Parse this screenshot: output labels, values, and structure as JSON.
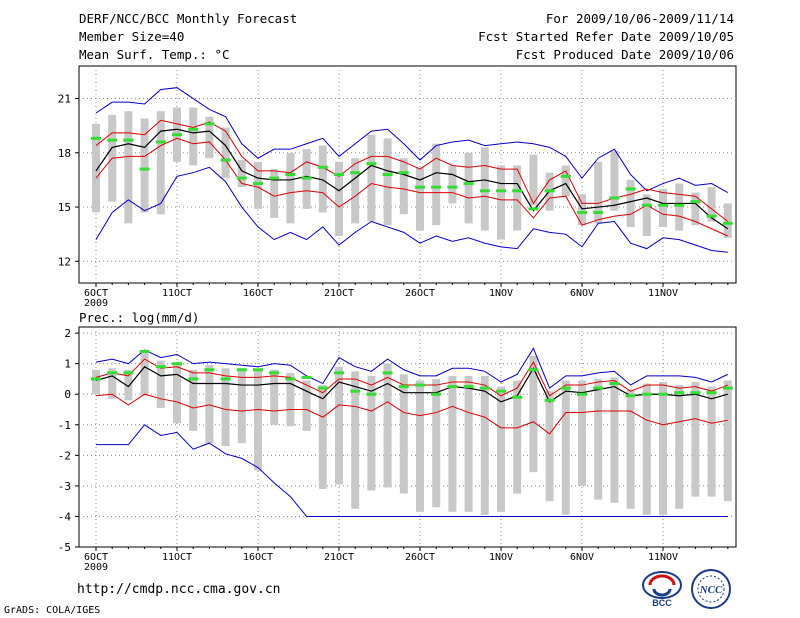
{
  "header": {
    "title": "DERF/NCC/BCC Monthly Forecast",
    "member_size": "Member Size=40",
    "variable": "Mean Surf. Temp.: °C",
    "period": "For 2009/10/06-2009/11/14",
    "fcst_started": "Fcst Started Refer Date 2009/10/05",
    "fcst_produced": "Fcst Produced Date 2009/10/06"
  },
  "footer": {
    "url": "http://cmdp.ncc.cma.gov.cn",
    "grads": "GrADS: COLA/IGES",
    "logo_left_text": "BCC",
    "logo_right_text": "NCC"
  },
  "colors": {
    "envelope": "#0000cc",
    "spread": "#dd0000",
    "mean": "#000000",
    "observed": "#33dd33",
    "box": "#c8c8c8"
  },
  "chart_data": [
    {
      "type": "box-ensemble",
      "title": "Mean Surf. Temp.: °C",
      "x_tick_labels": [
        "6OCT",
        "11OCT",
        "16OCT",
        "21OCT",
        "26OCT",
        "1NOV",
        "6NOV",
        "11NOV"
      ],
      "x_tick_days": [
        1,
        6,
        11,
        16,
        21,
        26,
        31,
        36
      ],
      "year_label": "2009",
      "yticks": [
        12,
        15,
        18,
        21
      ],
      "ylim": [
        10.8,
        22.8
      ],
      "days": 40,
      "ensemble_max": [
        20.2,
        20.8,
        20.8,
        20.7,
        21.5,
        21.6,
        21.0,
        20.4,
        20.0,
        18.5,
        17.7,
        18.2,
        18.2,
        18.5,
        18.8,
        17.8,
        18.5,
        19.2,
        19.3,
        18.5,
        17.6,
        18.4,
        18.6,
        18.7,
        18.4,
        18.5,
        18.6,
        18.5,
        18.3,
        17.8,
        16.6,
        17.7,
        18.2,
        16.8,
        15.9,
        16.3,
        16.6,
        16.2,
        16.3,
        15.8
      ],
      "ensemble_min": [
        13.2,
        14.7,
        15.4,
        14.8,
        15.2,
        16.7,
        16.9,
        17.2,
        16.4,
        15.0,
        13.9,
        13.2,
        13.6,
        13.2,
        13.9,
        12.9,
        13.6,
        14.2,
        13.9,
        13.6,
        13.0,
        13.4,
        13.1,
        13.3,
        13.0,
        12.8,
        12.7,
        13.8,
        13.6,
        13.5,
        12.8,
        14.1,
        14.2,
        13.0,
        12.7,
        13.3,
        13.2,
        12.9,
        12.6,
        12.5
      ],
      "spread_upper": [
        18.4,
        19.1,
        19.1,
        19.0,
        19.8,
        19.6,
        19.4,
        19.7,
        19.2,
        17.8,
        17.0,
        17.0,
        16.9,
        17.5,
        17.2,
        16.7,
        17.4,
        17.8,
        17.8,
        17.5,
        17.1,
        17.7,
        17.3,
        17.2,
        17.3,
        17.1,
        17.1,
        15.2,
        16.5,
        17.0,
        15.2,
        15.2,
        15.5,
        15.7,
        16.0,
        15.8,
        15.7,
        15.6,
        14.9,
        14.2
      ],
      "ensemble_mean": [
        17.0,
        18.3,
        18.5,
        18.3,
        19.2,
        19.3,
        19.1,
        19.2,
        18.4,
        17.0,
        16.6,
        16.5,
        16.5,
        16.7,
        16.5,
        15.9,
        16.6,
        17.3,
        17.0,
        16.8,
        16.5,
        16.9,
        16.8,
        16.4,
        16.5,
        16.3,
        16.3,
        14.8,
        15.9,
        16.3,
        14.9,
        15.0,
        15.1,
        15.3,
        15.5,
        15.2,
        15.2,
        15.2,
        14.4,
        13.8
      ],
      "spread_lower": [
        16.6,
        17.7,
        17.8,
        17.8,
        18.4,
        18.8,
        18.5,
        18.6,
        17.6,
        16.3,
        16.1,
        15.6,
        15.8,
        15.9,
        15.8,
        15.0,
        15.6,
        16.3,
        16.1,
        16.0,
        15.8,
        15.8,
        15.8,
        15.5,
        15.6,
        15.4,
        15.4,
        14.4,
        15.5,
        15.6,
        14.0,
        14.3,
        14.5,
        14.6,
        15.1,
        14.6,
        14.5,
        14.2,
        13.8,
        13.4
      ],
      "box_high": [
        19.6,
        20.1,
        20.3,
        19.9,
        20.3,
        20.5,
        20.5,
        20.0,
        19.4,
        17.6,
        17.5,
        17.1,
        18.0,
        18.2,
        18.4,
        17.5,
        17.7,
        19.0,
        18.8,
        17.7,
        17.2,
        18.5,
        17.3,
        18.0,
        18.3,
        17.3,
        17.3,
        17.9,
        16.9,
        17.3,
        15.7,
        17.5,
        18.1,
        16.5,
        15.7,
        16.0,
        16.3,
        15.8,
        16.1,
        15.2
      ],
      "box_low": [
        14.7,
        15.3,
        14.1,
        14.7,
        14.6,
        17.5,
        17.3,
        17.7,
        16.6,
        16.1,
        14.9,
        14.4,
        14.1,
        14.9,
        14.7,
        13.4,
        14.1,
        14.2,
        14.0,
        14.6,
        13.7,
        14.0,
        15.2,
        14.1,
        13.7,
        13.2,
        13.7,
        15.1,
        14.8,
        15.6,
        14.0,
        14.1,
        14.8,
        13.9,
        13.4,
        13.9,
        13.7,
        14.0,
        14.2,
        13.3
      ],
      "observed": [
        18.8,
        18.7,
        18.7,
        17.1,
        18.6,
        19.0,
        19.3,
        19.6,
        17.6,
        16.6,
        16.3,
        16.6,
        16.8,
        16.6,
        17.2,
        16.8,
        16.9,
        17.4,
        16.8,
        16.9,
        16.1,
        16.1,
        16.1,
        16.3,
        15.9,
        15.9,
        15.9,
        14.9,
        15.9,
        16.7,
        14.7,
        14.7,
        15.5,
        16.0,
        15.1,
        15.1,
        15.1,
        15.3,
        14.5,
        14.1
      ]
    },
    {
      "type": "box-ensemble",
      "title": "Prec.: log(mm/d)",
      "x_tick_labels": [
        "6OCT",
        "11OCT",
        "16OCT",
        "21OCT",
        "26OCT",
        "1NOV",
        "6NOV",
        "11NOV"
      ],
      "x_tick_days": [
        1,
        6,
        11,
        16,
        21,
        26,
        31,
        36
      ],
      "year_label": "2009",
      "yticks": [
        -5,
        -4,
        -3,
        -2,
        -1,
        0,
        1,
        2
      ],
      "ylim": [
        -5,
        2.2
      ],
      "days": 40,
      "ensemble_max": [
        1.05,
        1.15,
        1.0,
        1.45,
        1.2,
        1.3,
        1.0,
        1.05,
        1.0,
        0.95,
        0.9,
        1.0,
        0.95,
        0.6,
        0.35,
        1.2,
        0.9,
        0.75,
        1.15,
        0.8,
        0.6,
        0.6,
        0.85,
        0.85,
        0.75,
        0.4,
        0.65,
        1.5,
        0.2,
        0.6,
        0.6,
        0.7,
        0.75,
        0.3,
        0.6,
        0.6,
        0.6,
        0.55,
        0.4,
        0.65
      ],
      "ensemble_min": [
        -1.65,
        -1.65,
        -1.65,
        -1.0,
        -1.35,
        -1.25,
        -1.8,
        -1.6,
        -1.95,
        -2.1,
        -2.4,
        -2.9,
        -3.35,
        -4.0,
        -4.0,
        -4.0,
        -4.0,
        -4.0,
        -4.0,
        -4.0,
        -4.0,
        -4.0,
        -4.0,
        -4.0,
        -4.0,
        -4.0,
        -4.0,
        -4.0,
        -4.0,
        -4.0,
        -4.0,
        -4.0,
        -4.0,
        -4.0,
        -4.0,
        -4.0,
        -4.0,
        -4.0,
        -4.0,
        -4.0
      ],
      "spread_upper": [
        0.55,
        0.7,
        0.6,
        1.15,
        0.85,
        0.9,
        0.7,
        0.7,
        0.6,
        0.55,
        0.55,
        0.6,
        0.55,
        0.3,
        0.05,
        0.5,
        0.5,
        0.3,
        0.55,
        0.3,
        0.3,
        0.3,
        0.4,
        0.4,
        0.3,
        -0.05,
        0.2,
        1.05,
        -0.05,
        0.3,
        0.3,
        0.4,
        0.45,
        0.1,
        0.3,
        0.3,
        0.2,
        0.25,
        0.1,
        0.3
      ],
      "ensemble_mean": [
        0.45,
        0.6,
        0.25,
        0.9,
        0.6,
        0.65,
        0.35,
        0.35,
        0.35,
        0.3,
        0.3,
        0.35,
        0.35,
        0.1,
        -0.15,
        0.4,
        0.25,
        0.1,
        0.35,
        0.05,
        0.05,
        0.05,
        0.25,
        0.2,
        0.1,
        -0.25,
        -0.05,
        0.85,
        -0.25,
        0.1,
        0.05,
        0.15,
        0.25,
        -0.05,
        0.0,
        0.0,
        -0.05,
        0.0,
        -0.15,
        0.0
      ],
      "spread_lower": [
        -0.05,
        0.0,
        -0.35,
        0.0,
        -0.15,
        -0.25,
        -0.45,
        -0.35,
        -0.5,
        -0.55,
        -0.5,
        -0.55,
        -0.5,
        -0.5,
        -0.75,
        -0.35,
        -0.4,
        -0.55,
        -0.25,
        -0.6,
        -0.7,
        -0.6,
        -0.4,
        -0.6,
        -0.75,
        -1.1,
        -1.1,
        -0.9,
        -1.3,
        -0.6,
        -0.6,
        -0.55,
        -0.55,
        -0.55,
        -0.85,
        -1.0,
        -0.9,
        -0.8,
        -0.95,
        -0.85
      ],
      "box_high": [
        0.8,
        0.85,
        0.8,
        1.35,
        1.1,
        1.0,
        0.8,
        0.95,
        0.85,
        0.85,
        0.8,
        0.8,
        0.7,
        0.45,
        0.3,
        0.9,
        0.75,
        0.6,
        1.0,
        0.65,
        0.45,
        0.5,
        0.6,
        0.6,
        0.6,
        0.25,
        0.45,
        1.25,
        0.1,
        0.45,
        0.45,
        0.5,
        0.55,
        0.15,
        0.35,
        0.4,
        0.3,
        0.4,
        0.25,
        0.45
      ],
      "box_low": [
        0.0,
        -0.15,
        -0.2,
        -0.05,
        -0.45,
        -0.95,
        -1.2,
        -1.6,
        -1.7,
        -1.6,
        -2.5,
        -1.0,
        -1.05,
        -1.2,
        -3.1,
        -2.95,
        -3.75,
        -3.15,
        -3.05,
        -3.25,
        -3.85,
        -3.7,
        -3.85,
        -3.85,
        -3.95,
        -3.85,
        -3.25,
        -2.55,
        -3.5,
        -3.95,
        -3.0,
        -3.45,
        -3.55,
        -3.75,
        -3.95,
        -3.95,
        -3.75,
        -3.35,
        -3.35,
        -3.5
      ],
      "observed": [
        0.5,
        0.7,
        0.7,
        1.4,
        0.9,
        1.0,
        0.5,
        0.8,
        0.5,
        0.8,
        0.8,
        0.7,
        0.5,
        0.55,
        0.2,
        0.7,
        0.1,
        0.0,
        0.7,
        0.25,
        0.3,
        0.0,
        0.25,
        0.25,
        0.2,
        0.1,
        -0.1,
        0.8,
        -0.2,
        0.2,
        0.0,
        0.2,
        0.35,
        -0.05,
        0.0,
        0.0,
        0.05,
        0.05,
        0.05,
        0.2
      ]
    }
  ]
}
